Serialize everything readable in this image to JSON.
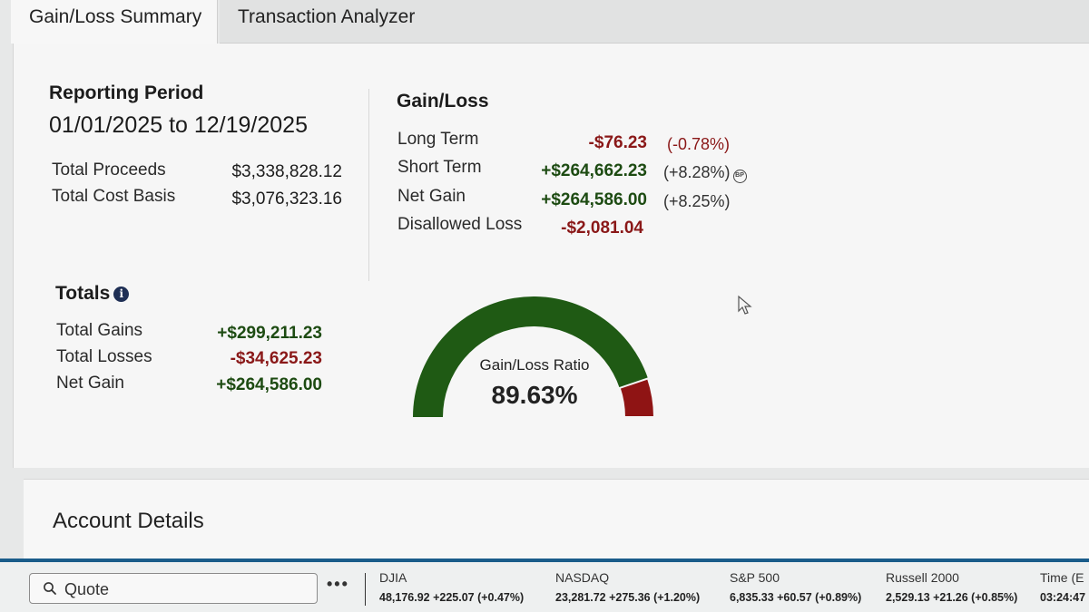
{
  "tabs": [
    {
      "label": "Gain/Loss Summary",
      "active": true
    },
    {
      "label": "Transaction Analyzer",
      "active": false
    }
  ],
  "reporting_period": {
    "heading": "Reporting Period",
    "range": "01/01/2025 to 12/19/2025"
  },
  "proceeds": {
    "total_proceeds_label": "Total Proceeds",
    "total_proceeds_value": "$3,338,828.12",
    "total_cost_basis_label": "Total Cost Basis",
    "total_cost_basis_value": "$3,076,323.16"
  },
  "gain_loss": {
    "heading": "Gain/Loss",
    "rows": [
      {
        "label": "Long Term",
        "value": "-$76.23",
        "pct": "(-0.78%)"
      },
      {
        "label": "Short Term",
        "value": "+$264,662.23",
        "pct": "(+8.28%)"
      },
      {
        "label": "Net Gain",
        "value": "+$264,586.00",
        "pct": "(+8.25%)"
      },
      {
        "label": "Disallowed Loss",
        "value": "-$2,081.04",
        "pct": ""
      }
    ]
  },
  "totals": {
    "heading": "Totals",
    "rows": [
      {
        "label": "Total Gains",
        "value": "+$299,211.23"
      },
      {
        "label": "Total Losses",
        "value": "-$34,625.23"
      },
      {
        "label": "Net Gain",
        "value": "+$264,586.00"
      }
    ]
  },
  "gauge": {
    "label": "Gain/Loss Ratio",
    "value_text": "89.63%",
    "ratio": 0.8963,
    "gain_color": "#1f5a14",
    "loss_color": "#8f1414"
  },
  "account_details": {
    "title": "Account Details"
  },
  "footer": {
    "quote_placeholder": "Quote",
    "more_label": "•••",
    "indices": [
      {
        "name": "DJIA",
        "value": "48,176.92 +225.07 (+0.47%)"
      },
      {
        "name": "NASDAQ",
        "value": "23,281.72 +275.36 (+1.20%)"
      },
      {
        "name": "S&P 500",
        "value": "6,835.33 +60.57 (+0.89%)"
      },
      {
        "name": "Russell 2000",
        "value": "2,529.13 +21.26 (+0.85%)"
      },
      {
        "name": "Time (E",
        "value": "03:24:47"
      }
    ]
  },
  "colors": {
    "positive": "#1d4b12",
    "negative": "#8a1818",
    "accent_bar": "#1a5c8a"
  }
}
